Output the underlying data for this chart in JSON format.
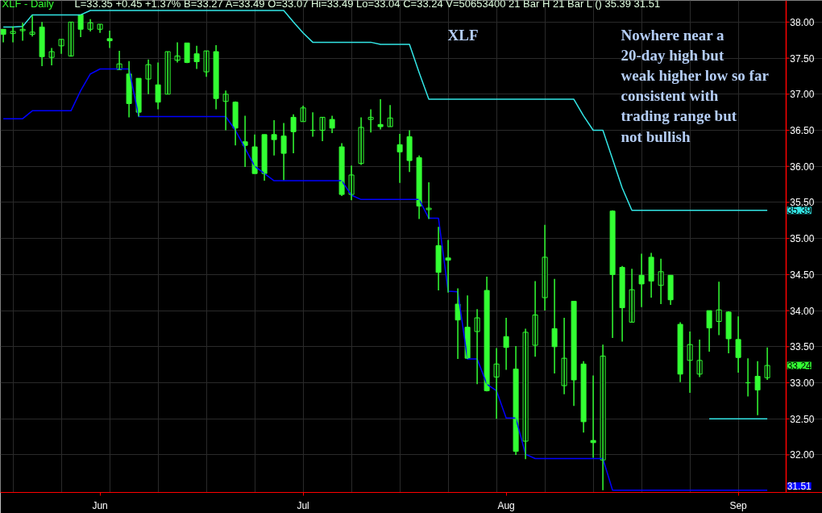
{
  "chart_data": {
    "type": "candlestick",
    "title": "XLF - Daily",
    "subtitle": "L=33.35  +0.45  +1.37%  B=33.27  A=33.49  O=33.07  Hi=33.49  Lo=33.04  C=33.24  V=50653400  21 Bar H  21 Bar L  ()  35.39  31.51",
    "categories": [
      null,
      null,
      null,
      null,
      null,
      null,
      null,
      null,
      null,
      null,
      "Jun",
      null,
      null,
      null,
      null,
      null,
      null,
      null,
      null,
      null,
      null,
      null,
      null,
      null,
      null,
      null,
      null,
      null,
      null,
      null,
      null,
      "Jul",
      null,
      null,
      null,
      null,
      null,
      null,
      null,
      null,
      null,
      null,
      null,
      null,
      null,
      null,
      null,
      null,
      null,
      null,
      null,
      null,
      "Aug",
      null,
      null,
      null,
      null,
      null,
      null,
      null,
      null,
      null,
      null,
      null,
      null,
      null,
      null,
      null,
      null,
      null,
      null,
      null,
      null,
      null,
      null,
      null,
      "Sep",
      null,
      null,
      null
    ],
    "color": "#33ff33",
    "ohlc": [
      [
        37.9,
        37.9,
        37.72,
        37.83
      ],
      [
        37.84,
        37.94,
        37.72,
        37.87
      ],
      [
        37.88,
        37.99,
        37.74,
        37.9
      ],
      [
        37.83,
        38.09,
        37.8,
        37.86
      ],
      [
        37.93,
        38.0,
        37.39,
        37.52
      ],
      [
        37.51,
        37.64,
        37.4,
        37.59
      ],
      [
        37.67,
        37.76,
        37.56,
        37.76
      ],
      [
        37.53,
        38.0,
        37.52,
        38.0
      ],
      [
        38.1,
        38.1,
        37.79,
        37.9
      ],
      [
        37.9,
        38.04,
        37.87,
        37.99
      ],
      [
        37.9,
        37.97,
        37.85,
        37.97
      ],
      [
        37.77,
        37.88,
        37.64,
        37.74
      ],
      [
        37.34,
        37.6,
        37.34,
        37.42
      ],
      [
        37.28,
        37.46,
        36.68,
        36.87
      ],
      [
        37.22,
        37.22,
        36.69,
        36.75
      ],
      [
        37.21,
        37.48,
        37.0,
        37.41
      ],
      [
        37.13,
        37.44,
        36.79,
        36.89
      ],
      [
        37.0,
        37.59,
        37.0,
        37.59
      ],
      [
        37.47,
        37.72,
        37.44,
        37.53
      ],
      [
        37.71,
        37.71,
        37.43,
        37.44
      ],
      [
        37.56,
        37.67,
        37.35,
        37.45
      ],
      [
        37.31,
        37.6,
        37.24,
        37.6
      ],
      [
        37.59,
        37.68,
        36.79,
        36.94
      ],
      [
        36.9,
        37.05,
        36.5,
        37.0
      ],
      [
        36.89,
        36.9,
        36.29,
        36.53
      ],
      [
        36.34,
        36.7,
        35.99,
        36.29
      ],
      [
        36.27,
        36.44,
        35.9,
        35.9
      ],
      [
        36.44,
        36.44,
        35.8,
        35.9
      ],
      [
        36.44,
        36.64,
        36.15,
        36.37
      ],
      [
        36.42,
        36.6,
        35.81,
        36.18
      ],
      [
        36.68,
        36.72,
        36.18,
        36.48
      ],
      [
        36.62,
        36.84,
        36.62,
        36.81
      ],
      [
        36.5,
        36.75,
        36.41,
        36.5
      ],
      [
        36.5,
        36.68,
        36.35,
        36.68
      ],
      [
        36.65,
        36.7,
        36.46,
        36.53
      ],
      [
        36.27,
        36.32,
        35.59,
        35.61
      ],
      [
        35.61,
        36.01,
        35.53,
        35.88
      ],
      [
        36.04,
        36.68,
        36.02,
        36.54
      ],
      [
        36.65,
        36.79,
        36.47,
        36.68
      ],
      [
        36.58,
        36.93,
        36.51,
        36.55
      ],
      [
        36.55,
        36.85,
        36.55,
        36.67
      ],
      [
        36.3,
        36.45,
        35.77,
        36.2
      ],
      [
        36.41,
        36.5,
        35.92,
        36.08
      ],
      [
        36.12,
        36.15,
        35.27,
        35.45
      ],
      [
        35.4,
        35.78,
        35.27,
        35.42
      ],
      [
        34.9,
        35.16,
        34.28,
        34.53
      ],
      [
        34.73,
        34.98,
        34.25,
        34.7
      ],
      [
        34.09,
        34.31,
        33.33,
        33.87
      ],
      [
        33.77,
        34.21,
        33.33,
        33.34
      ],
      [
        33.71,
        34.02,
        32.98,
        33.9
      ],
      [
        34.28,
        34.47,
        32.88,
        32.89
      ],
      [
        33.08,
        33.48,
        32.5,
        33.26
      ],
      [
        33.64,
        33.9,
        33.18,
        33.49
      ],
      [
        33.19,
        33.51,
        32.0,
        32.05
      ],
      [
        32.19,
        33.75,
        31.94,
        33.7
      ],
      [
        33.52,
        34.41,
        33.36,
        33.94
      ],
      [
        34.18,
        35.19,
        34.0,
        34.74
      ],
      [
        33.75,
        34.44,
        33.13,
        33.5
      ],
      [
        32.96,
        33.9,
        32.84,
        33.34
      ],
      [
        34.13,
        34.13,
        32.68,
        33.04
      ],
      [
        33.26,
        33.3,
        32.31,
        32.46
      ],
      [
        32.2,
        33.1,
        31.96,
        32.17
      ],
      [
        31.93,
        33.53,
        31.51,
        33.37
      ],
      [
        35.38,
        35.39,
        33.62,
        34.5
      ],
      [
        34.6,
        34.62,
        33.57,
        34.04
      ],
      [
        33.84,
        34.58,
        33.84,
        34.29
      ],
      [
        34.49,
        34.79,
        34.05,
        34.37
      ],
      [
        34.74,
        34.8,
        34.18,
        34.41
      ],
      [
        34.35,
        34.72,
        34.09,
        34.54
      ],
      [
        34.49,
        34.49,
        34.08,
        34.15
      ],
      [
        33.81,
        33.84,
        33.01,
        33.12
      ],
      [
        33.31,
        33.71,
        32.86,
        33.53
      ],
      [
        33.12,
        33.6,
        33.08,
        33.31
      ],
      [
        34.0,
        34.0,
        33.43,
        33.76
      ],
      [
        33.85,
        34.4,
        33.66,
        34.01
      ],
      [
        33.98,
        33.99,
        33.41,
        33.61
      ],
      [
        33.6,
        33.92,
        33.14,
        33.35
      ],
      [
        33.0,
        33.34,
        32.81,
        33.0
      ],
      [
        33.09,
        33.3,
        32.55,
        32.9
      ],
      [
        33.07,
        33.49,
        33.04,
        33.24
      ]
    ],
    "series": [
      {
        "type": "line",
        "color": "#33e6e6",
        "values": [
          37.93,
          37.93,
          37.94,
          38.1,
          38.1,
          38.1,
          38.1,
          38.1,
          38.1,
          38.16,
          38.16,
          38.16,
          38.16,
          38.16,
          38.16,
          38.16,
          38.16,
          38.16,
          38.16,
          38.16,
          38.16,
          38.16,
          38.16,
          38.16,
          38.16,
          38.16,
          38.16,
          38.16,
          38.16,
          38.16,
          38.0,
          37.85,
          37.72,
          37.72,
          37.72,
          37.72,
          37.72,
          37.72,
          37.72,
          37.69,
          37.69,
          37.69,
          37.69,
          37.3,
          36.93,
          36.93,
          36.93,
          36.93,
          36.93,
          36.93,
          36.93,
          36.93,
          36.93,
          36.93,
          36.93,
          36.93,
          36.93,
          36.93,
          36.93,
          36.93,
          36.7,
          36.5,
          36.5,
          36.1,
          35.7,
          35.39,
          35.39,
          35.39,
          35.39,
          35.39,
          35.39,
          35.39,
          35.39,
          35.39,
          35.39,
          35.39,
          35.39,
          35.39,
          35.39,
          35.39
        ]
      },
      {
        "type": "line",
        "color": "#0000ff",
        "values": [
          36.66,
          36.66,
          36.66,
          36.77,
          36.77,
          36.77,
          36.77,
          36.77,
          37.05,
          37.28,
          37.35,
          37.35,
          37.35,
          37.35,
          36.69,
          36.69,
          36.69,
          36.69,
          36.69,
          36.69,
          36.69,
          36.69,
          36.69,
          36.69,
          36.5,
          36.25,
          36.0,
          35.9,
          35.8,
          35.8,
          35.8,
          35.8,
          35.8,
          35.8,
          35.8,
          35.8,
          35.6,
          35.54,
          35.54,
          35.54,
          35.54,
          35.54,
          35.54,
          35.54,
          35.28,
          35.28,
          34.27,
          34.26,
          33.33,
          33.33,
          32.98,
          32.89,
          32.51,
          32.51,
          32.01,
          31.95,
          31.95,
          31.95,
          31.95,
          31.95,
          31.95,
          31.95,
          31.95,
          31.51,
          31.51,
          31.51,
          31.51,
          31.51,
          31.51,
          31.51,
          31.51,
          31.51,
          31.51,
          31.51,
          31.51,
          31.51,
          31.51,
          31.51,
          31.51,
          31.51
        ]
      },
      {
        "type": "line",
        "color": "#33e6e6",
        "values": [
          null,
          null,
          null,
          null,
          null,
          null,
          null,
          null,
          null,
          null,
          null,
          null,
          null,
          null,
          null,
          null,
          null,
          null,
          null,
          null,
          null,
          null,
          null,
          null,
          null,
          null,
          null,
          null,
          null,
          null,
          null,
          null,
          null,
          null,
          null,
          null,
          null,
          null,
          null,
          null,
          null,
          null,
          null,
          null,
          null,
          null,
          null,
          null,
          null,
          null,
          null,
          null,
          null,
          null,
          null,
          null,
          null,
          null,
          null,
          null,
          null,
          null,
          null,
          null,
          null,
          null,
          null,
          null,
          null,
          null,
          null,
          null,
          null,
          32.5,
          32.5,
          32.5,
          32.5,
          32.5,
          32.5,
          32.5
        ]
      }
    ],
    "ylim": [
      31.48,
      38.3
    ],
    "yticks": [
      {
        "value": 32,
        "label": "32.00"
      },
      {
        "value": 32.5,
        "label": "32.50"
      },
      {
        "value": 33,
        "label": "33.00"
      },
      {
        "value": 33.5,
        "label": "33.50"
      },
      {
        "value": 34,
        "label": "34.00"
      },
      {
        "value": 34.5,
        "label": "34.50"
      },
      {
        "value": 35,
        "label": "35.00"
      },
      {
        "value": 35.5,
        "label": "35.50"
      },
      {
        "value": 36,
        "label": "36.00"
      },
      {
        "value": 36.5,
        "label": "36.50"
      },
      {
        "value": 37,
        "label": "37.00"
      },
      {
        "value": 37.5,
        "label": "37.50"
      },
      {
        "value": 38,
        "label": "38.00"
      }
    ],
    "grid": true,
    "annotations": [
      "XLF",
      "Nowhere near a\n20-day high but\nweak higher low so far\nconsistent with\ntrading range but\nnot bullish",
      "35.39",
      "33.24",
      "31.51"
    ]
  }
}
